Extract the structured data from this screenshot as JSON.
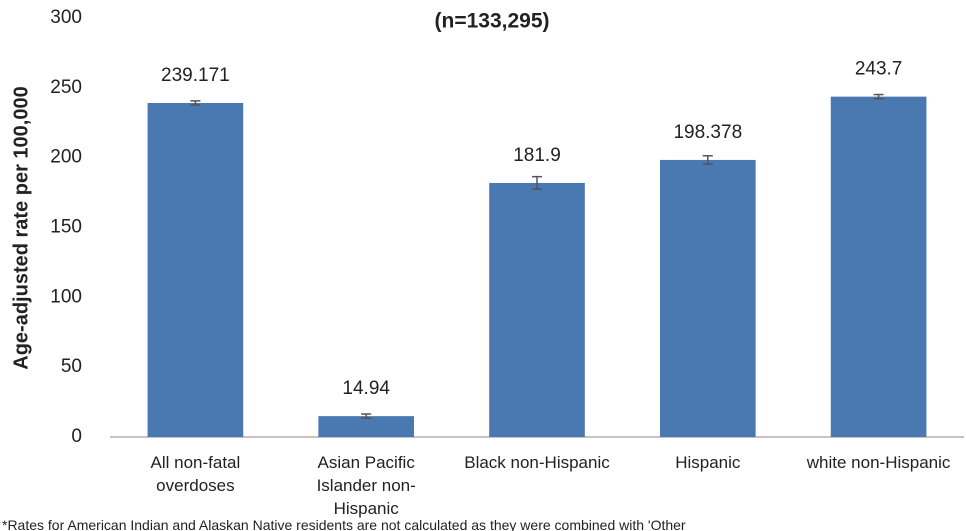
{
  "chart_data": {
    "type": "bar",
    "title": "(n=133,295)",
    "y_label": "Age-adjusted rate per 100,000",
    "categories": [
      "All non-fatal overdoses",
      "Asian Pacific Islander non-Hispanic",
      "Black non-Hispanic",
      "Hispanic",
      "white non-Hispanic"
    ],
    "values": [
      239.171,
      14.94,
      181.9,
      198.378,
      243.7
    ],
    "errors": [
      1.5,
      1.5,
      4.5,
      3,
      1.5
    ],
    "color": "#4a78b0",
    "ylim": [
      0,
      300
    ],
    "yticks": [
      0,
      50,
      100,
      150,
      200,
      250,
      300
    ],
    "grid": false,
    "footnote": "*Rates for American Indian and Alaskan Native residents are not calculated as they were combined with 'Other"
  }
}
